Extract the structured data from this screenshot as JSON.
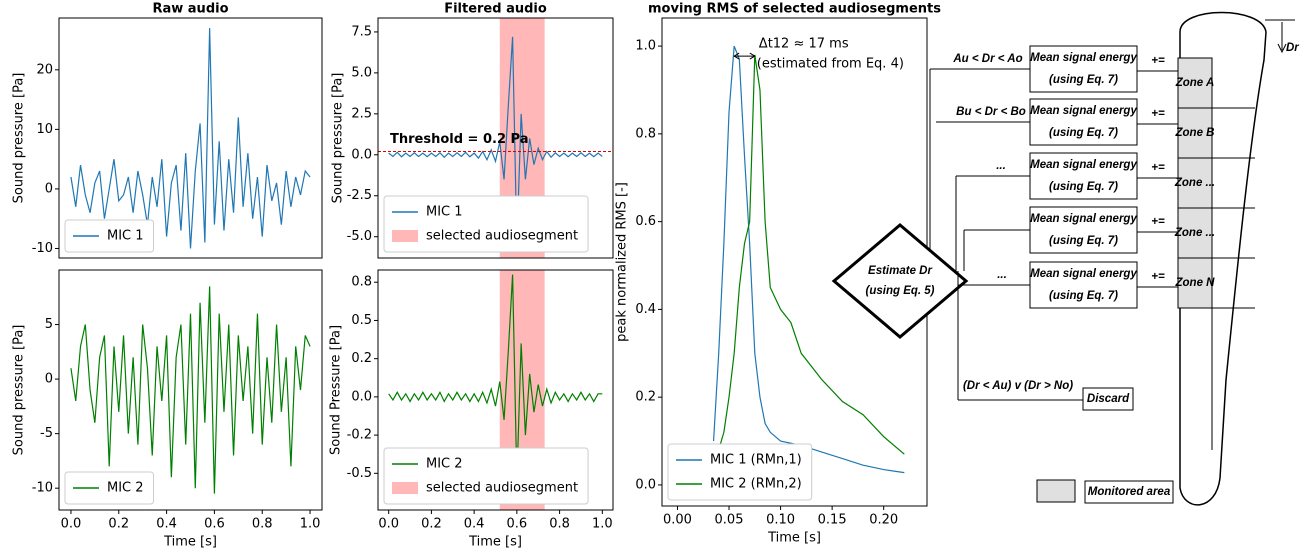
{
  "chart_data": [
    {
      "type": "line",
      "title": "Raw audio",
      "ylabel": "Sound pressure [Pa]",
      "legend": "lower left",
      "xlim": [
        -0.05,
        1.05
      ],
      "ylim": [
        -11.6,
        28.7
      ],
      "yticks": [
        -10,
        0,
        10,
        20
      ],
      "x": [
        0,
        0.02,
        0.04,
        0.06,
        0.08,
        0.1,
        0.12,
        0.14,
        0.16,
        0.18,
        0.2,
        0.22,
        0.24,
        0.26,
        0.28,
        0.3,
        0.32,
        0.34,
        0.36,
        0.38,
        0.4,
        0.42,
        0.44,
        0.46,
        0.48,
        0.5,
        0.52,
        0.54,
        0.56,
        0.58,
        0.6,
        0.62,
        0.64,
        0.66,
        0.68,
        0.7,
        0.72,
        0.74,
        0.76,
        0.78,
        0.8,
        0.82,
        0.84,
        0.86,
        0.88,
        0.9,
        0.92,
        0.94,
        0.96,
        0.98,
        1.0
      ],
      "series": [
        {
          "name": "MIC 1",
          "color": "#1f77b4",
          "values": [
            2,
            -3,
            4,
            -1,
            -4,
            1,
            3,
            -5,
            0,
            5,
            -2,
            -1,
            2,
            -4,
            3,
            -1,
            -6,
            2,
            -3,
            5,
            -8,
            1,
            4,
            -7,
            6,
            -10,
            3,
            11,
            -9,
            27,
            -6,
            8,
            -7,
            5,
            -4,
            12,
            -3,
            6,
            -5,
            2,
            -8,
            4,
            -2,
            1,
            -6,
            3,
            -3,
            2,
            -1,
            3,
            2
          ]
        }
      ]
    },
    {
      "type": "line",
      "ylabel": "Sound pressure [Pa]",
      "xlabel": "Time [s]",
      "legend": "lower left",
      "xlim": [
        -0.05,
        1.05
      ],
      "ylim": [
        -12,
        10
      ],
      "yticks": [
        -10,
        -5,
        0,
        5
      ],
      "xticks": [
        {
          "value": 0,
          "label": "0.0"
        },
        0.2,
        0.4,
        0.6,
        0.8,
        {
          "value": 1,
          "label": "1.0"
        }
      ],
      "x": [
        0,
        0.02,
        0.04,
        0.06,
        0.08,
        0.1,
        0.12,
        0.14,
        0.16,
        0.18,
        0.2,
        0.22,
        0.24,
        0.26,
        0.28,
        0.3,
        0.32,
        0.34,
        0.36,
        0.38,
        0.4,
        0.42,
        0.44,
        0.46,
        0.48,
        0.5,
        0.52,
        0.54,
        0.56,
        0.58,
        0.6,
        0.62,
        0.64,
        0.66,
        0.68,
        0.7,
        0.72,
        0.74,
        0.76,
        0.78,
        0.8,
        0.82,
        0.84,
        0.86,
        0.88,
        0.9,
        0.92,
        0.94,
        0.96,
        0.98,
        1.0
      ],
      "series": [
        {
          "name": "MIC 2",
          "color": "#008000",
          "values": [
            1,
            -2,
            3,
            5,
            -1,
            -4,
            2,
            4,
            -8,
            3,
            -3,
            4,
            -5,
            2,
            -6,
            5,
            1,
            -7,
            3,
            -2,
            4,
            -9,
            2,
            5,
            -6,
            6,
            -10,
            7,
            -4,
            8.5,
            -10.5,
            6,
            -3,
            5,
            -7,
            4,
            -2,
            3,
            -5,
            6,
            -6,
            2,
            -4,
            5,
            -3,
            2,
            -8,
            3,
            -1,
            4,
            3
          ]
        }
      ]
    },
    {
      "type": "line",
      "title": "Filtered audio",
      "ylabel": "Sound pressure [Pa]",
      "legend": "lower left",
      "xlim": [
        -0.05,
        1.05
      ],
      "ylim": [
        -6.3,
        8.35
      ],
      "yticks": [
        {
          "value": -5,
          "label": "-5.0"
        },
        -2.5,
        {
          "value": 0,
          "label": "0.0"
        },
        2.5,
        {
          "value": 5,
          "label": "5.0"
        },
        7.5
      ],
      "span": [
        0.52,
        0.73
      ],
      "span_name": "selected audiosegment",
      "span_color": "#ff9999",
      "threshold": 0.2,
      "threshold_label": "Threshold = 0.2 Pa",
      "threshold_color": "#e00000",
      "x": [
        0,
        0.02,
        0.04,
        0.06,
        0.08,
        0.1,
        0.12,
        0.14,
        0.16,
        0.18,
        0.2,
        0.22,
        0.24,
        0.26,
        0.28,
        0.3,
        0.32,
        0.34,
        0.36,
        0.38,
        0.4,
        0.42,
        0.44,
        0.46,
        0.48,
        0.5,
        0.52,
        0.54,
        0.56,
        0.58,
        0.6,
        0.62,
        0.64,
        0.66,
        0.68,
        0.7,
        0.72,
        0.74,
        0.76,
        0.78,
        0.8,
        0.82,
        0.84,
        0.86,
        0.88,
        0.9,
        0.92,
        0.94,
        0.96,
        0.98,
        1.0
      ],
      "series": [
        {
          "name": "MIC 1",
          "color": "#1f77b4",
          "values": [
            0.1,
            -0.1,
            0.15,
            -0.12,
            0.1,
            -0.1,
            0.12,
            -0.1,
            0.1,
            -0.12,
            0.1,
            -0.1,
            0.12,
            -0.15,
            0.1,
            -0.1,
            0.12,
            -0.1,
            0.15,
            -0.12,
            0.1,
            -0.2,
            0.2,
            -0.3,
            0.3,
            -0.4,
            0.8,
            -1.5,
            3,
            7.2,
            -5.5,
            2.5,
            -1.5,
            1,
            -0.6,
            0.4,
            -0.3,
            0.2,
            -0.15,
            0.12,
            -0.1,
            0.1,
            -0.12,
            0.1,
            -0.1,
            0.12,
            -0.1,
            0.1,
            -0.12,
            0.1,
            -0.1
          ]
        }
      ]
    },
    {
      "type": "line",
      "ylabel": "Sound Pressure [Pa]",
      "xlabel": "Time [s]",
      "legend": "lower left",
      "xlim": [
        -0.05,
        1.05
      ],
      "ylim": [
        -0.74,
        0.83
      ],
      "yticks": [
        -0.5,
        {
          "value": -0.25,
          "label": "-0.2"
        },
        {
          "value": 0,
          "label": "0.0"
        },
        {
          "value": 0.25,
          "label": "0.2"
        },
        0.5,
        {
          "value": 0.75,
          "label": "0.8"
        }
      ],
      "xticks": [
        {
          "value": 0,
          "label": "0.0"
        },
        0.2,
        0.4,
        0.6,
        0.8,
        {
          "value": 1,
          "label": "1.0"
        }
      ],
      "span": [
        0.52,
        0.73
      ],
      "span_name": "selected audiosegment",
      "span_color": "#ff9999",
      "x": [
        0,
        0.02,
        0.04,
        0.06,
        0.08,
        0.1,
        0.12,
        0.14,
        0.16,
        0.18,
        0.2,
        0.22,
        0.24,
        0.26,
        0.28,
        0.3,
        0.32,
        0.34,
        0.36,
        0.38,
        0.4,
        0.42,
        0.44,
        0.46,
        0.48,
        0.5,
        0.52,
        0.54,
        0.56,
        0.58,
        0.6,
        0.62,
        0.64,
        0.66,
        0.68,
        0.7,
        0.72,
        0.74,
        0.76,
        0.78,
        0.8,
        0.82,
        0.84,
        0.86,
        0.88,
        0.9,
        0.92,
        0.94,
        0.96,
        0.98,
        1.0
      ],
      "series": [
        {
          "name": "MIC 2",
          "color": "#008000",
          "values": [
            0.02,
            -0.02,
            0.03,
            -0.02,
            0.02,
            -0.03,
            0.02,
            -0.02,
            0.03,
            -0.02,
            0.02,
            -0.02,
            0.03,
            -0.03,
            0.02,
            -0.02,
            0.03,
            -0.02,
            0.02,
            -0.03,
            0.02,
            -0.03,
            0.03,
            -0.04,
            0.05,
            -0.06,
            0.1,
            -0.15,
            0.3,
            0.8,
            -0.55,
            0.35,
            -0.25,
            0.15,
            -0.1,
            0.08,
            -0.06,
            0.05,
            -0.04,
            0.03,
            -0.02,
            0.02,
            -0.03,
            0.02,
            -0.02,
            0.03,
            -0.02,
            0.02,
            -0.03,
            0.02,
            0.02
          ]
        }
      ]
    },
    {
      "type": "line",
      "title": "moving RMS of selected audiosegments",
      "ylabel": "peak normalized RMS [-]",
      "xlabel": "Time [s]",
      "legend": "lower left",
      "xlim": [
        -0.015,
        0.242
      ],
      "ylim": [
        -0.048,
        1.064
      ],
      "xticks": [
        {
          "value": 0,
          "label": "0.00"
        },
        0.05,
        {
          "value": 0.1,
          "label": "0.10"
        },
        0.15,
        {
          "value": 0.2,
          "label": "0.20"
        }
      ],
      "yticks": [
        {
          "value": 0,
          "label": "0.0"
        },
        0.2,
        0.4,
        0.6,
        0.8,
        {
          "value": 1,
          "label": "1.0"
        }
      ],
      "annotations": [
        "Δt12 ≈ 17 ms",
        "(estimated from Eq. 4)"
      ],
      "x": [
        0.035,
        0.04,
        0.045,
        0.05,
        0.055,
        0.06,
        0.065,
        0.07,
        0.075,
        0.08,
        0.085,
        0.09,
        0.1,
        0.11,
        0.12,
        0.14,
        0.16,
        0.18,
        0.2,
        0.22
      ],
      "series": [
        {
          "name": "MIC 1 (RMn,1)",
          "color": "#1f77b4",
          "values": [
            0.1,
            0.3,
            0.55,
            0.85,
            1.0,
            0.97,
            0.75,
            0.55,
            0.3,
            0.2,
            0.14,
            0.12,
            0.1,
            0.095,
            0.09,
            0.075,
            0.06,
            0.045,
            0.035,
            0.028
          ]
        },
        {
          "name": "MIC 2 (RMn,2)",
          "color": "#008000",
          "values": [
            0.05,
            0.08,
            0.12,
            0.2,
            0.3,
            0.45,
            0.55,
            0.6,
            0.98,
            0.9,
            0.6,
            0.45,
            0.4,
            0.37,
            0.3,
            0.24,
            0.19,
            0.16,
            0.11,
            0.07
          ]
        }
      ]
    }
  ],
  "diagram": {
    "decision": [
      "Estimate Dr",
      "(using Eq. 5)"
    ],
    "boxes": [
      {
        "condition": "Au < Dr < Ao",
        "lines": [
          "Mean signal energy",
          "(using Eq. 7)"
        ],
        "op": "+=",
        "zone": "Zone A"
      },
      {
        "condition": "Bu < Dr < Bo",
        "lines": [
          "Mean signal energy",
          "(using Eq. 7)"
        ],
        "op": "+=",
        "zone": "Zone B"
      },
      {
        "condition": "...",
        "lines": [
          "Mean signal energy",
          "(using Eq. 7)"
        ],
        "op": "+=",
        "zone": "Zone ..."
      },
      {
        "lines": [
          "Mean signal energy",
          "(using Eq. 7)"
        ],
        "op": "+=",
        "zone": "Zone ..."
      },
      {
        "condition": "...",
        "lines": [
          "Mean signal energy",
          "(using Eq. 7)"
        ],
        "op": "+=",
        "zone": "Zone N"
      }
    ],
    "discard": {
      "condition": "(Dr < Au) v (Dr > No)",
      "label": "Discard"
    },
    "legend": "Monitored area",
    "depth_label": "Dr"
  }
}
